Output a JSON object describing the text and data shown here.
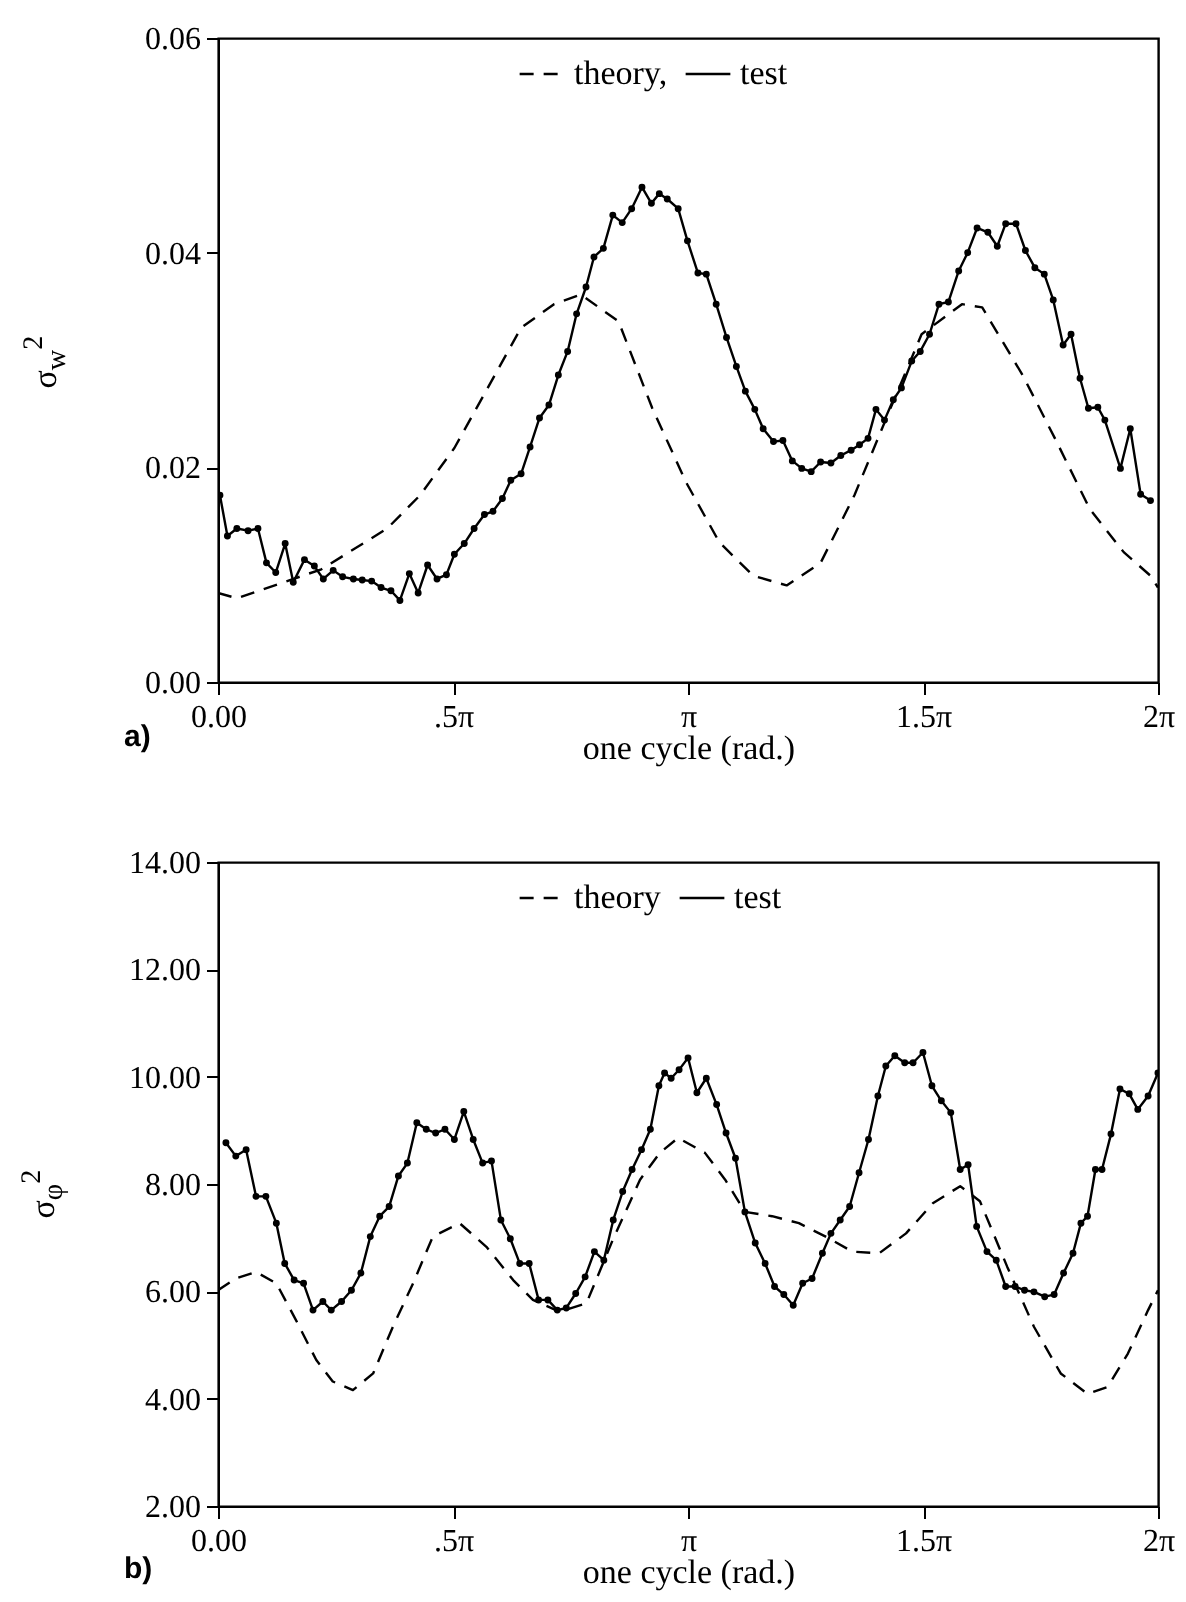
{
  "chart_data": [
    {
      "type": "line",
      "xlabel": "one cycle (rad.)",
      "ylabel": "σ$_{w}$$^{2}$",
      "annotations": [
        "a)"
      ],
      "legend": "top",
      "grid": false,
      "xlim": [
        0,
        6.2832
      ],
      "xticks": [
        {
          "value": 0,
          "label": "0.00"
        },
        {
          "value": 1.5708,
          "label": ".5π"
        },
        {
          "value": 3.1416,
          "label": "π"
        },
        {
          "value": 4.7124,
          "label": "1.5π"
        },
        {
          "value": 6.2832,
          "label": "2π"
        }
      ],
      "ylim": [
        0,
        0.06
      ],
      "yticks": [
        {
          "value": 0,
          "label": "0.00"
        },
        {
          "value": 0.02,
          "label": "0.02"
        },
        {
          "value": 0.04,
          "label": "0.04"
        },
        {
          "value": 0.06,
          "label": "0.06"
        }
      ],
      "series": [
        {
          "name": "theory,",
          "color": "#000000",
          "line_style": "dashed",
          "marker": "none",
          "x": [
            0,
            0.126,
            0.691,
            1.131,
            1.351,
            1.58,
            1.803,
            2.026,
            2.246,
            2.425,
            2.677,
            2.903,
            3.129,
            3.352,
            3.578,
            3.801,
            4.028,
            4.254,
            4.477,
            4.703,
            4.973,
            5.108,
            5.378,
            5.605,
            5.828,
            6.054,
            6.233,
            6.283
          ],
          "values": [
            0.0083,
            0.0078,
            0.0105,
            0.0143,
            0.0174,
            0.0218,
            0.0274,
            0.033,
            0.0352,
            0.0361,
            0.0336,
            0.0255,
            0.0186,
            0.013,
            0.0099,
            0.009,
            0.0111,
            0.0174,
            0.0249,
            0.0324,
            0.0352,
            0.0349,
            0.0286,
            0.0224,
            0.0161,
            0.0121,
            0.0099,
            0.0088
          ]
        },
        {
          "name": "test",
          "color": "#000000",
          "line_style": "solid",
          "marker": "circle",
          "x": [
            0.013,
            0.063,
            0.126,
            0.201,
            0.267,
            0.324,
            0.386,
            0.449,
            0.503,
            0.578,
            0.644,
            0.704,
            0.77,
            0.833,
            0.905,
            0.964,
            1.027,
            1.09,
            1.156,
            1.216,
            1.279,
            1.338,
            1.401,
            1.464,
            1.527,
            1.58,
            1.646,
            1.712,
            1.781,
            1.838,
            1.901,
            1.957,
            2.026,
            2.086,
            2.149,
            2.212,
            2.275,
            2.337,
            2.397,
            2.46,
            2.513,
            2.576,
            2.639,
            2.702,
            2.765,
            2.834,
            2.897,
            2.95,
            3.003,
            3.076,
            3.138,
            3.208,
            3.264,
            3.33,
            3.399,
            3.465,
            3.525,
            3.588,
            3.644,
            3.713,
            3.776,
            3.839,
            3.902,
            3.965,
            4.028,
            4.097,
            4.163,
            4.232,
            4.288,
            4.345,
            4.398,
            4.455,
            4.514,
            4.568,
            4.637,
            4.694,
            4.756,
            4.819,
            4.882,
            4.951,
            5.011,
            5.074,
            5.146,
            5.209,
            5.265,
            5.334,
            5.397,
            5.46,
            5.523,
            5.583,
            5.649,
            5.702,
            5.762,
            5.818,
            5.881,
            5.928,
            6.032,
            6.098,
            6.167,
            6.233
          ],
          "values": [
            0.0174,
            0.0136,
            0.0143,
            0.0141,
            0.0143,
            0.0111,
            0.0102,
            0.0129,
            0.0093,
            0.0114,
            0.0108,
            0.0096,
            0.0104,
            0.0098,
            0.0096,
            0.0095,
            0.0094,
            0.0088,
            0.0085,
            0.0076,
            0.0101,
            0.0083,
            0.0109,
            0.0096,
            0.01,
            0.0119,
            0.0129,
            0.0143,
            0.0156,
            0.0159,
            0.0171,
            0.0188,
            0.0194,
            0.0219,
            0.0246,
            0.0258,
            0.0286,
            0.0308,
            0.0343,
            0.0368,
            0.0396,
            0.0404,
            0.0435,
            0.0428,
            0.0441,
            0.0461,
            0.0446,
            0.0455,
            0.045,
            0.0441,
            0.0411,
            0.0381,
            0.038,
            0.0352,
            0.0321,
            0.0294,
            0.0271,
            0.0254,
            0.0236,
            0.0224,
            0.0225,
            0.0206,
            0.0199,
            0.0196,
            0.0205,
            0.0204,
            0.0211,
            0.0216,
            0.0221,
            0.0227,
            0.0254,
            0.0244,
            0.0263,
            0.0274,
            0.0299,
            0.0308,
            0.0324,
            0.0352,
            0.0354,
            0.0383,
            0.04,
            0.0423,
            0.0419,
            0.0406,
            0.0427,
            0.0427,
            0.0402,
            0.0386,
            0.038,
            0.0356,
            0.0314,
            0.0324,
            0.0283,
            0.0255,
            0.0256,
            0.0244,
            0.0199,
            0.0236,
            0.0175,
            0.0169
          ]
        }
      ]
    },
    {
      "type": "line",
      "xlabel": "one cycle (rad.)",
      "ylabel": "σ$_{φ}$$^{2}$",
      "annotations": [
        "b)"
      ],
      "legend": "top",
      "grid": false,
      "xlim": [
        0,
        6.2832
      ],
      "xticks": [
        {
          "value": 0,
          "label": "0.00"
        },
        {
          "value": 1.5708,
          "label": ".5π"
        },
        {
          "value": 3.1416,
          "label": "π"
        },
        {
          "value": 4.7124,
          "label": "1.5π"
        },
        {
          "value": 6.2832,
          "label": "2π"
        }
      ],
      "ylim": [
        2,
        14
      ],
      "yticks": [
        {
          "value": 2,
          "label": "2.00"
        },
        {
          "value": 4,
          "label": "4.00"
        },
        {
          "value": 6,
          "label": "6.00"
        },
        {
          "value": 8,
          "label": "8.00"
        },
        {
          "value": 10,
          "label": "10.00"
        },
        {
          "value": 12,
          "label": "12.00"
        },
        {
          "value": 14,
          "label": "14.00"
        }
      ],
      "series": [
        {
          "name": "theory",
          "color": "#000000",
          "line_style": "dashed",
          "marker": "none",
          "x": [
            0,
            0.119,
            0.254,
            0.39,
            0.522,
            0.657,
            0.767,
            0.902,
            1.037,
            1.169,
            1.304,
            1.436,
            1.615,
            1.794,
            1.973,
            2.105,
            2.284,
            2.463,
            2.639,
            2.821,
            2.953,
            3.076,
            3.255,
            3.39,
            3.522,
            3.704,
            3.883,
            4.062,
            4.241,
            4.42,
            4.599,
            4.778,
            4.961,
            5.093,
            5.275,
            5.454,
            5.633,
            5.812,
            5.947,
            6.082,
            6.217,
            6.283
          ],
          "values": [
            6.02,
            6.24,
            6.36,
            6.15,
            5.46,
            4.72,
            4.32,
            4.16,
            4.47,
            5.34,
            6.15,
            7.02,
            7.27,
            6.83,
            6.21,
            5.84,
            5.62,
            5.78,
            6.96,
            8.08,
            8.58,
            8.86,
            8.58,
            8.08,
            7.48,
            7.4,
            7.27,
            7.02,
            6.74,
            6.71,
            7.08,
            7.64,
            7.96,
            7.68,
            6.46,
            5.34,
            4.47,
            4.09,
            4.22,
            4.84,
            5.65,
            6.02
          ]
        },
        {
          "name": "test",
          "color": "#000000",
          "line_style": "solid",
          "marker": "circle",
          "x": [
            0.053,
            0.119,
            0.188,
            0.254,
            0.32,
            0.39,
            0.446,
            0.509,
            0.572,
            0.635,
            0.701,
            0.757,
            0.826,
            0.892,
            0.955,
            1.018,
            1.081,
            1.144,
            1.206,
            1.266,
            1.329,
            1.392,
            1.455,
            1.517,
            1.58,
            1.643,
            1.706,
            1.769,
            1.828,
            1.891,
            1.954,
            2.017,
            2.08,
            2.143,
            2.205,
            2.268,
            2.328,
            2.391,
            2.454,
            2.516,
            2.579,
            2.642,
            2.705,
            2.768,
            2.831,
            2.89,
            2.947,
            2.985,
            3.029,
            3.082,
            3.142,
            3.201,
            3.264,
            3.333,
            3.396,
            3.459,
            3.522,
            3.591,
            3.657,
            3.72,
            3.782,
            3.845,
            3.908,
            3.971,
            4.04,
            4.097,
            4.159,
            4.222,
            4.285,
            4.348,
            4.411,
            4.464,
            4.524,
            4.59,
            4.646,
            4.712,
            4.772,
            4.835,
            4.898,
            4.961,
            5.014,
            5.071,
            5.14,
            5.202,
            5.265,
            5.328,
            5.391,
            5.454,
            5.526,
            5.589,
            5.652,
            5.715,
            5.768,
            5.812,
            5.865,
            5.909,
            5.969,
            6.029,
            6.091,
            6.148,
            6.217,
            6.283
          ],
          "values": [
            8.77,
            8.52,
            8.64,
            7.77,
            7.77,
            7.27,
            6.52,
            6.21,
            6.15,
            5.65,
            5.81,
            5.65,
            5.81,
            6.02,
            6.34,
            7.02,
            7.4,
            7.58,
            8.15,
            8.39,
            9.14,
            9.02,
            8.95,
            9.02,
            8.83,
            9.35,
            8.83,
            8.39,
            8.43,
            7.33,
            6.98,
            6.52,
            6.52,
            5.84,
            5.84,
            5.65,
            5.69,
            5.96,
            6.27,
            6.74,
            6.58,
            7.33,
            7.86,
            8.27,
            8.64,
            9.02,
            9.83,
            10.07,
            9.97,
            10.13,
            10.35,
            9.7,
            9.97,
            9.48,
            8.95,
            8.48,
            7.48,
            6.9,
            6.52,
            6.09,
            5.94,
            5.74,
            6.15,
            6.24,
            6.71,
            7.08,
            7.33,
            7.58,
            8.21,
            8.83,
            9.64,
            10.2,
            10.39,
            10.26,
            10.26,
            10.45,
            9.83,
            9.55,
            9.33,
            8.27,
            8.36,
            7.21,
            6.74,
            6.58,
            6.09,
            6.09,
            6.02,
            5.99,
            5.9,
            5.94,
            6.34,
            6.71,
            7.27,
            7.4,
            8.27,
            8.27,
            8.93,
            9.77,
            9.68,
            9.39,
            9.64,
            10.07
          ]
        }
      ]
    }
  ]
}
